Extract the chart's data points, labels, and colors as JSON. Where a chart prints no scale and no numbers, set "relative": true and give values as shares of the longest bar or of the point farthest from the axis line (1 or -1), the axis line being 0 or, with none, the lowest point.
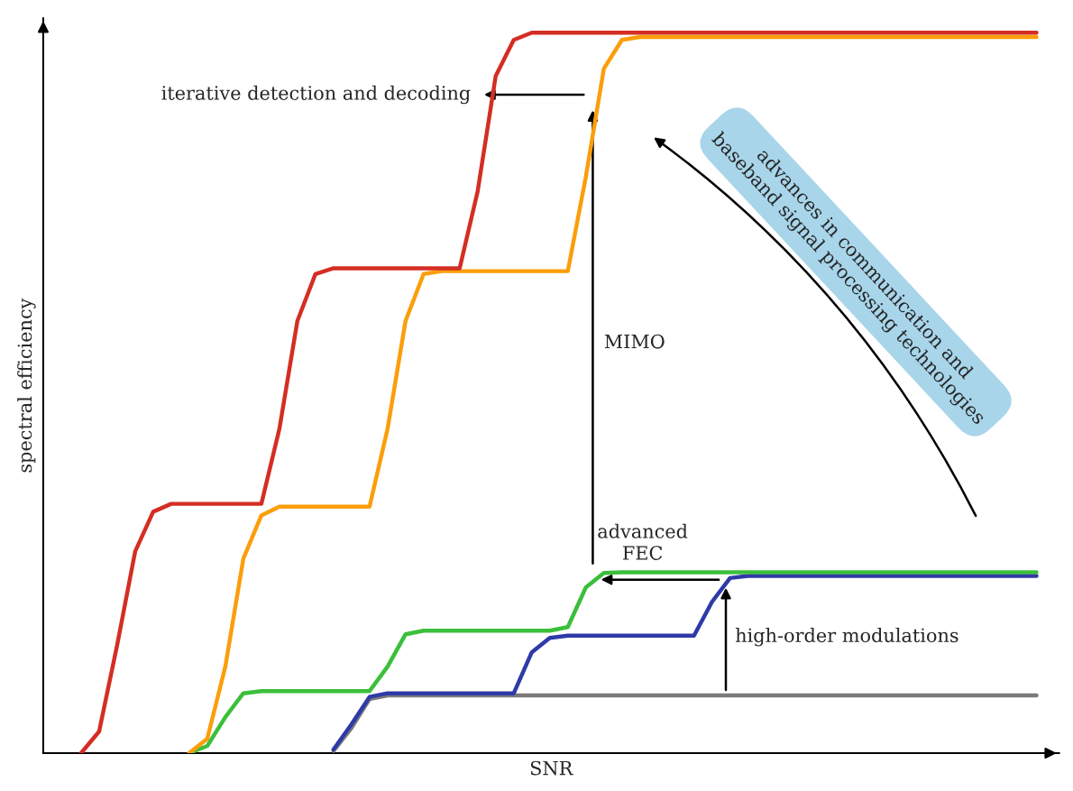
{
  "chart_data": {
    "type": "line",
    "relative": true,
    "xlabel": "SNR",
    "ylabel": "spectral efficiency",
    "tick_labels": false,
    "grid": false,
    "legend": false,
    "categories": [
      null,
      null,
      null,
      null,
      null,
      null,
      null,
      null,
      null,
      null,
      null,
      null,
      null,
      null,
      null,
      null,
      null,
      null,
      null,
      null,
      null,
      null,
      null,
      null,
      null,
      null,
      null,
      null,
      null,
      null,
      null,
      null,
      null,
      null,
      null,
      null,
      null,
      null,
      null,
      null,
      null,
      null,
      null,
      null,
      null,
      null,
      null,
      null,
      null,
      null,
      null,
      null,
      null,
      null,
      null,
      null
    ],
    "series": [
      {
        "color": "#d42e23",
        "values": [
          null,
          null,
          0,
          0.03,
          0.15,
          0.28,
          0.335,
          0.346,
          0.346,
          0.346,
          0.346,
          0.346,
          0.346,
          0.45,
          0.6,
          0.665,
          0.673,
          0.673,
          0.673,
          0.673,
          0.673,
          0.673,
          0.673,
          0.673,
          0.78,
          0.94,
          0.99,
          1,
          1,
          1,
          1,
          1,
          1,
          1,
          1,
          1,
          1,
          1,
          1,
          1,
          1,
          1,
          1,
          1,
          1,
          1,
          1,
          1,
          1,
          1,
          1,
          1,
          1,
          1,
          1,
          1
        ]
      },
      {
        "color": "#fb9e0b",
        "values": [
          null,
          null,
          null,
          null,
          null,
          null,
          null,
          null,
          0,
          0.02,
          0.12,
          0.27,
          0.33,
          0.342,
          0.342,
          0.342,
          0.342,
          0.342,
          0.342,
          0.45,
          0.6,
          0.665,
          0.669,
          0.669,
          0.669,
          0.669,
          0.669,
          0.669,
          0.669,
          0.669,
          0.8,
          0.95,
          0.99,
          0.994,
          0.994,
          0.994,
          0.994,
          0.994,
          0.994,
          0.994,
          0.994,
          0.994,
          0.994,
          0.994,
          0.994,
          0.994,
          0.994,
          0.994,
          0.994,
          0.994,
          0.994,
          0.994,
          0.994,
          0.994,
          0.994,
          0.994
        ]
      },
      {
        "color": "#3bbf3b",
        "values": [
          null,
          null,
          null,
          null,
          null,
          null,
          null,
          null,
          0,
          0.01,
          0.05,
          0.083,
          0.086,
          0.086,
          0.086,
          0.086,
          0.086,
          0.086,
          0.086,
          0.12,
          0.165,
          0.17,
          0.17,
          0.17,
          0.17,
          0.17,
          0.17,
          0.17,
          0.17,
          0.175,
          0.23,
          0.25,
          0.251,
          0.251,
          0.251,
          0.251,
          0.251,
          0.251,
          0.251,
          0.251,
          0.251,
          0.251,
          0.251,
          0.251,
          0.251,
          0.251,
          0.251,
          0.251,
          0.251,
          0.251,
          0.251,
          0.251,
          0.251,
          0.251,
          0.251,
          0.251
        ]
      },
      {
        "color": "#2e3aa8",
        "values": [
          null,
          null,
          null,
          null,
          null,
          null,
          null,
          null,
          null,
          null,
          null,
          null,
          null,
          null,
          null,
          null,
          0.005,
          0.04,
          0.078,
          0.083,
          0.083,
          0.083,
          0.083,
          0.083,
          0.083,
          0.083,
          0.083,
          0.14,
          0.16,
          0.163,
          0.163,
          0.163,
          0.163,
          0.163,
          0.163,
          0.163,
          0.163,
          0.21,
          0.243,
          0.246,
          0.246,
          0.246,
          0.246,
          0.246,
          0.246,
          0.246,
          0.246,
          0.246,
          0.246,
          0.246,
          0.246,
          0.246,
          0.246,
          0.246,
          0.246,
          0.246
        ]
      },
      {
        "color": "#7a7a7a",
        "values": [
          null,
          null,
          null,
          null,
          null,
          null,
          null,
          null,
          null,
          null,
          null,
          null,
          null,
          null,
          null,
          null,
          0.003,
          0.035,
          0.075,
          0.08,
          0.08,
          0.08,
          0.08,
          0.08,
          0.08,
          0.08,
          0.08,
          0.08,
          0.08,
          0.08,
          0.08,
          0.08,
          0.08,
          0.08,
          0.08,
          0.08,
          0.08,
          0.08,
          0.08,
          0.08,
          0.08,
          0.08,
          0.08,
          0.08,
          0.08,
          0.08,
          0.08,
          0.08,
          0.08,
          0.08,
          0.08,
          0.08,
          0.08,
          0.08,
          0.08,
          0.08
        ]
      }
    ],
    "annotations": [
      "iterative detection and decoding",
      "MIMO",
      "advanced\nFEC",
      "high-order modulations",
      "advances in communication and\nbaseband signal processing technologies"
    ]
  }
}
